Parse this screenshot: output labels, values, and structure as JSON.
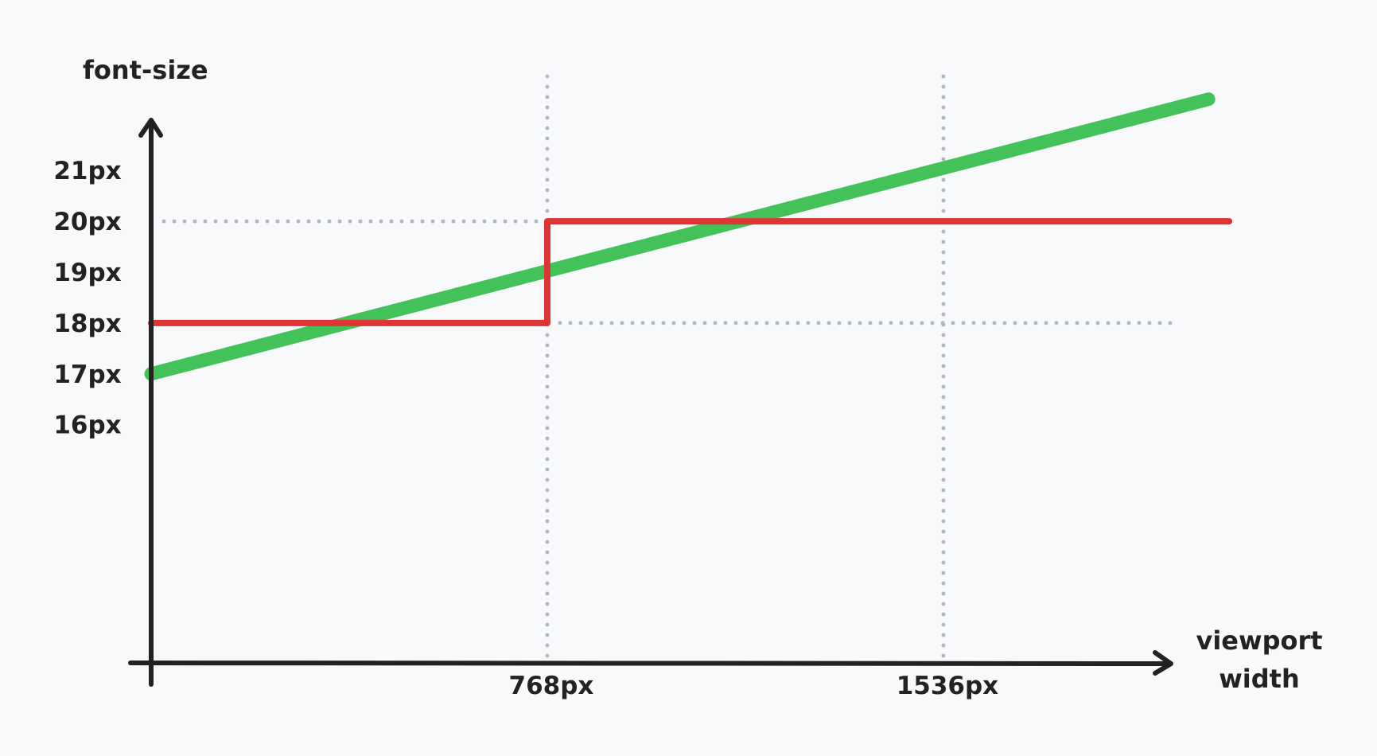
{
  "chart_data": {
    "type": "line",
    "title": "",
    "ylabel": "font-size",
    "xlabel": [
      "viewport",
      "width"
    ],
    "x_ticks": [
      {
        "value": 768,
        "label": "768px"
      },
      {
        "value": 1536,
        "label": "1536px"
      }
    ],
    "y_ticks": [
      {
        "value": 16,
        "label": "16px"
      },
      {
        "value": 17,
        "label": "17px"
      },
      {
        "value": 18,
        "label": "18px"
      },
      {
        "value": 19,
        "label": "19px"
      },
      {
        "value": 20,
        "label": "20px"
      },
      {
        "value": 21,
        "label": "21px"
      }
    ],
    "xlim": [
      0,
      2250
    ],
    "ylim": [
      11.3,
      23.1
    ],
    "series": [
      {
        "color": "#44c25a",
        "x": [
          0,
          2050
        ],
        "y": [
          17,
          22.4
        ]
      },
      {
        "color": "#e03434",
        "x": [
          0,
          768,
          768,
          2090
        ],
        "y": [
          18,
          18,
          20,
          20
        ]
      }
    ],
    "guides": [
      {
        "orientation": "vertical",
        "value": 768,
        "color": "#b4b7bd"
      },
      {
        "orientation": "vertical",
        "value": 1536,
        "color": "#b4b7bd"
      },
      {
        "orientation": "horizontal",
        "value": 20,
        "from": 0,
        "to": 768,
        "color": "#b4b7bd"
      },
      {
        "orientation": "horizontal",
        "value": 18,
        "from": 768,
        "to": 1980,
        "color": "#b4b7bd"
      }
    ],
    "axis_color": "#222222",
    "grid": false
  }
}
